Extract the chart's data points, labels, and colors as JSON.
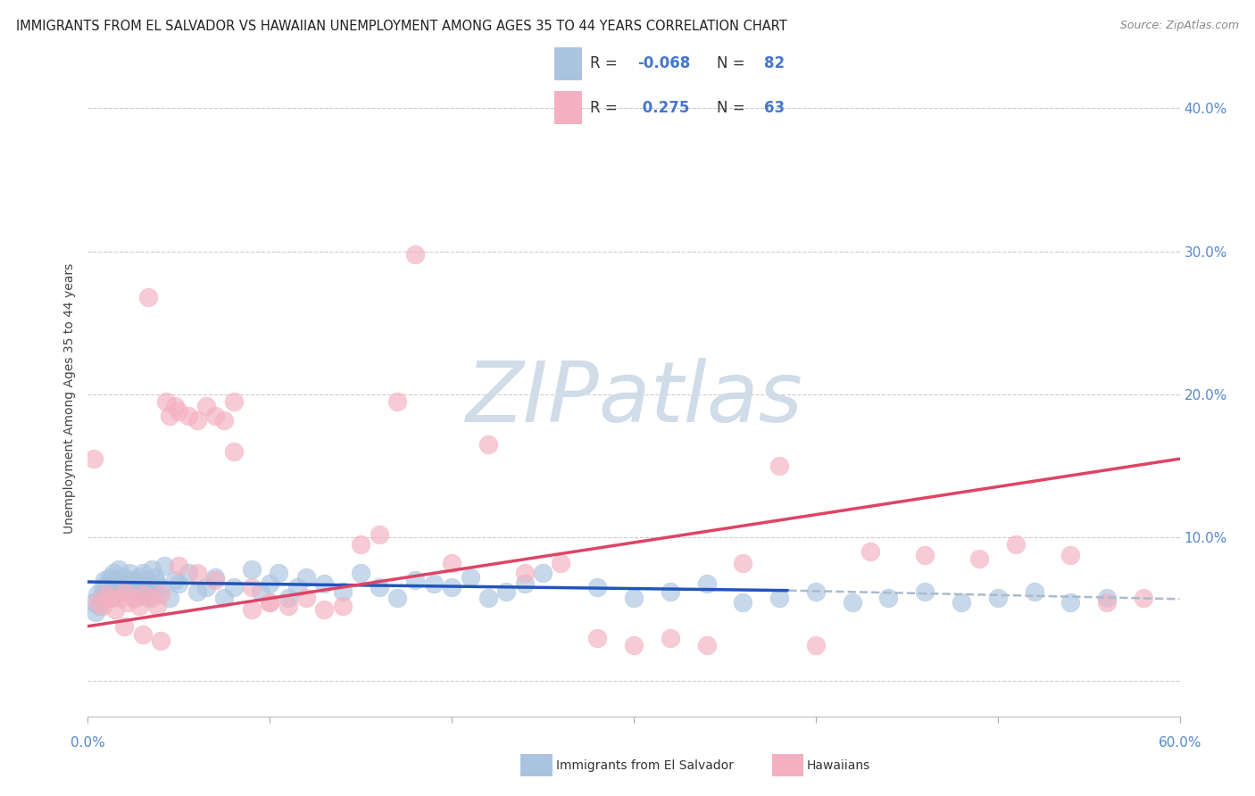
{
  "title": "IMMIGRANTS FROM EL SALVADOR VS HAWAIIAN UNEMPLOYMENT AMONG AGES 35 TO 44 YEARS CORRELATION CHART",
  "source": "Source: ZipAtlas.com",
  "ylabel": "Unemployment Among Ages 35 to 44 years",
  "yticks": [
    0.0,
    0.1,
    0.2,
    0.3,
    0.4
  ],
  "ytick_labels": [
    "",
    "10.0%",
    "20.0%",
    "30.0%",
    "40.0%"
  ],
  "xticks": [
    0.0,
    0.1,
    0.2,
    0.3,
    0.4,
    0.5,
    0.6
  ],
  "blue_color": "#aac4e0",
  "pink_color": "#f4b0c0",
  "blue_line_color": "#2255bb",
  "pink_line_color": "#dd4466",
  "dash_line_color": "#aabbcc",
  "watermark": "ZIPatlas",
  "watermark_color": "#d0dce8",
  "blue_scatter_x": [
    0.003,
    0.004,
    0.005,
    0.006,
    0.007,
    0.008,
    0.009,
    0.01,
    0.011,
    0.012,
    0.013,
    0.014,
    0.015,
    0.016,
    0.017,
    0.018,
    0.019,
    0.02,
    0.021,
    0.022,
    0.023,
    0.024,
    0.025,
    0.026,
    0.027,
    0.028,
    0.029,
    0.03,
    0.031,
    0.032,
    0.033,
    0.034,
    0.035,
    0.036,
    0.037,
    0.038,
    0.04,
    0.042,
    0.045,
    0.048,
    0.05,
    0.055,
    0.06,
    0.065,
    0.07,
    0.075,
    0.08,
    0.09,
    0.095,
    0.1,
    0.105,
    0.11,
    0.115,
    0.12,
    0.13,
    0.14,
    0.15,
    0.16,
    0.17,
    0.18,
    0.19,
    0.2,
    0.21,
    0.22,
    0.23,
    0.24,
    0.25,
    0.28,
    0.3,
    0.32,
    0.34,
    0.36,
    0.38,
    0.4,
    0.42,
    0.44,
    0.46,
    0.48,
    0.5,
    0.52,
    0.54,
    0.56
  ],
  "blue_scatter_y": [
    0.055,
    0.048,
    0.06,
    0.052,
    0.058,
    0.065,
    0.07,
    0.062,
    0.068,
    0.072,
    0.058,
    0.075,
    0.065,
    0.07,
    0.078,
    0.068,
    0.062,
    0.072,
    0.065,
    0.068,
    0.075,
    0.062,
    0.07,
    0.058,
    0.065,
    0.072,
    0.068,
    0.075,
    0.062,
    0.07,
    0.058,
    0.065,
    0.078,
    0.062,
    0.072,
    0.068,
    0.065,
    0.08,
    0.058,
    0.07,
    0.068,
    0.075,
    0.062,
    0.065,
    0.072,
    0.058,
    0.065,
    0.078,
    0.062,
    0.068,
    0.075,
    0.058,
    0.065,
    0.072,
    0.068,
    0.062,
    0.075,
    0.065,
    0.058,
    0.07,
    0.068,
    0.065,
    0.072,
    0.058,
    0.062,
    0.068,
    0.075,
    0.065,
    0.058,
    0.062,
    0.068,
    0.055,
    0.058,
    0.062,
    0.055,
    0.058,
    0.062,
    0.055,
    0.058,
    0.062,
    0.055,
    0.058
  ],
  "pink_scatter_x": [
    0.003,
    0.005,
    0.008,
    0.01,
    0.012,
    0.015,
    0.018,
    0.02,
    0.022,
    0.025,
    0.028,
    0.03,
    0.033,
    0.035,
    0.038,
    0.04,
    0.043,
    0.045,
    0.048,
    0.05,
    0.055,
    0.06,
    0.065,
    0.07,
    0.075,
    0.08,
    0.09,
    0.1,
    0.11,
    0.12,
    0.13,
    0.14,
    0.15,
    0.16,
    0.17,
    0.18,
    0.2,
    0.22,
    0.24,
    0.26,
    0.28,
    0.3,
    0.32,
    0.34,
    0.36,
    0.38,
    0.4,
    0.43,
    0.46,
    0.49,
    0.51,
    0.54,
    0.56,
    0.58,
    0.02,
    0.03,
    0.04,
    0.05,
    0.06,
    0.07,
    0.08,
    0.09,
    0.1
  ],
  "pink_scatter_y": [
    0.155,
    0.055,
    0.052,
    0.06,
    0.058,
    0.05,
    0.058,
    0.062,
    0.055,
    0.058,
    0.052,
    0.06,
    0.268,
    0.058,
    0.052,
    0.06,
    0.195,
    0.185,
    0.192,
    0.188,
    0.185,
    0.182,
    0.192,
    0.185,
    0.182,
    0.195,
    0.05,
    0.055,
    0.052,
    0.058,
    0.05,
    0.052,
    0.095,
    0.102,
    0.195,
    0.298,
    0.082,
    0.165,
    0.075,
    0.082,
    0.03,
    0.025,
    0.03,
    0.025,
    0.082,
    0.15,
    0.025,
    0.09,
    0.088,
    0.085,
    0.095,
    0.088,
    0.055,
    0.058,
    0.038,
    0.032,
    0.028,
    0.08,
    0.075,
    0.07,
    0.16,
    0.065,
    0.055
  ],
  "blue_trend_x0": 0.0,
  "blue_trend_y0": 0.069,
  "blue_trend_x1": 0.385,
  "blue_trend_y1": 0.063,
  "blue_trend_x2": 0.6,
  "blue_trend_y2": 0.057,
  "pink_trend_x0": 0.0,
  "pink_trend_y0": 0.038,
  "pink_trend_x1": 0.6,
  "pink_trend_y1": 0.155,
  "xlim": [
    0.0,
    0.6
  ],
  "ylim": [
    -0.025,
    0.42
  ],
  "figsize": [
    14.06,
    8.92
  ],
  "dpi": 100
}
